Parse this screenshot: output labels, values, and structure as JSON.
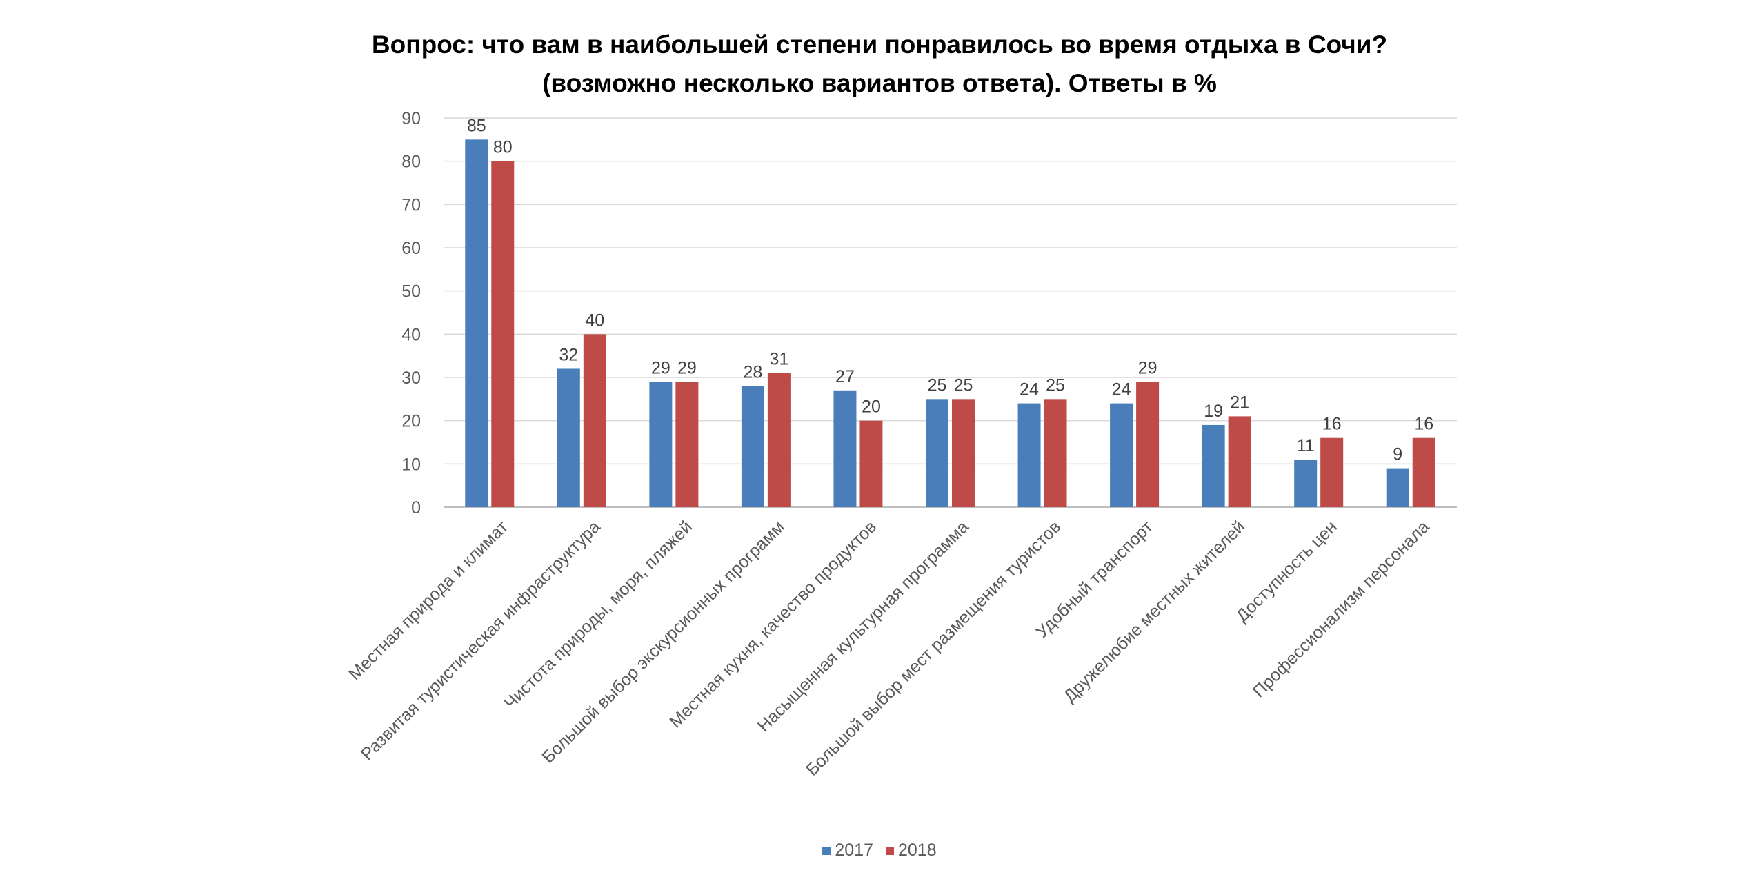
{
  "chart_data": {
    "type": "bar",
    "title": "Вопрос: что вам в наибольшей степени понравилось во время отдыха в Сочи?",
    "subtitle": "(возможно несколько вариантов ответа). Ответы в %",
    "categories": [
      "Местная природа и климат",
      "Развитая туристическая инфраструктура",
      "Чистота природы, моря, пляжей",
      "Большой выбор экскурсионных программ",
      "Местная кухня, качество продуктов",
      "Насыщенная культурная программа",
      "Большой выбор мест размещения туристов",
      "Удобный транспорт",
      "Дружелюбие местных жителей",
      "Доступность цен",
      "Профессионализм персонала"
    ],
    "series": [
      {
        "name": "2017",
        "color": "#4a7ebb",
        "values": [
          85,
          32,
          29,
          28,
          27,
          25,
          24,
          24,
          19,
          11,
          9
        ]
      },
      {
        "name": "2018",
        "color": "#be4b48",
        "values": [
          80,
          40,
          29,
          31,
          20,
          25,
          25,
          29,
          21,
          16,
          16
        ]
      }
    ],
    "ylim": [
      0,
      90
    ],
    "yticks": [
      0,
      10,
      20,
      30,
      40,
      50,
      60,
      70,
      80,
      90
    ],
    "xlabel": "",
    "ylabel": "",
    "grid": true,
    "legend_position": "bottom",
    "data_labels": true
  }
}
